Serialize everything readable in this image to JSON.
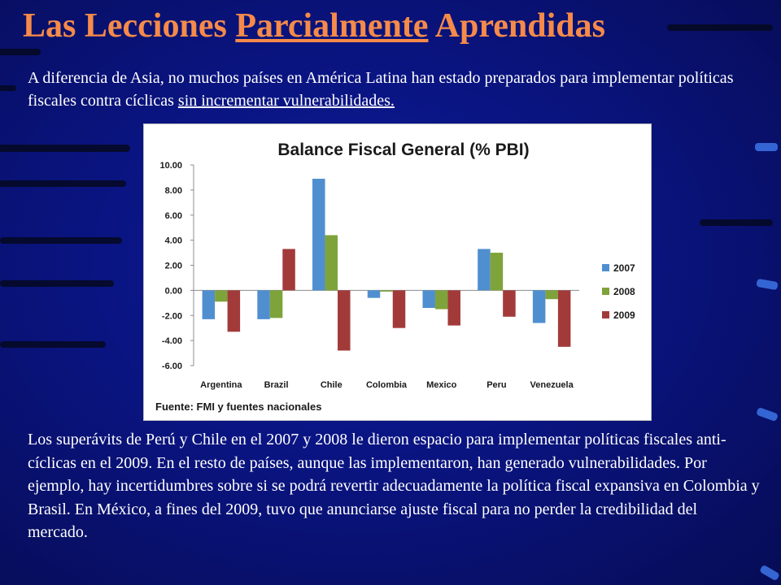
{
  "slide": {
    "title_part1": "Las Lecciones ",
    "title_part2": "Parcialmente",
    "title_part3": " Aprendidas",
    "intro_part1": "A diferencia de Asia, no muchos países en América Latina han estado preparados para implementar políticas fiscales contra cíclicas ",
    "intro_part2": "sin incrementar vulnerabilidades.",
    "body": "Los superávits de Perú y Chile en el 2007 y 2008 le dieron espacio para implementar políticas fiscales anti-cíclicas en el 2009. En el resto de países, aunque las implementaron, han generado vulnerabilidades. Por ejemplo, hay incertidumbres sobre si se podrá revertir adecuadamente la política fiscal expansiva en Colombia y Brasil. En México, a fines del 2009, tuvo que anunciarse ajuste fiscal para no perder la credibilidad del mercado."
  },
  "chart_data": {
    "type": "bar",
    "title": "Balance Fiscal General (% PBI)",
    "source": "Fuente: FMI y fuentes nacionales",
    "categories": [
      "Argentina",
      "Brazil",
      "Chile",
      "Colombia",
      "Mexico",
      "Peru",
      "Venezuela"
    ],
    "series": [
      {
        "name": "2007",
        "color": "#4f8fd0",
        "values": [
          -2.3,
          -2.3,
          8.9,
          -0.6,
          -1.4,
          3.3,
          -2.6
        ]
      },
      {
        "name": "2008",
        "color": "#7ea33a",
        "values": [
          -0.9,
          -2.2,
          4.4,
          -0.1,
          -1.5,
          3.0,
          -0.7
        ]
      },
      {
        "name": "2009",
        "color": "#a33a3a",
        "values": [
          -3.3,
          3.3,
          -4.8,
          -3.0,
          -2.8,
          -2.1,
          -4.5
        ]
      }
    ],
    "ylim": [
      -6,
      10
    ],
    "yticks": [
      -6,
      -4,
      -2,
      0,
      2,
      4,
      6,
      8,
      10
    ],
    "ytick_labels": [
      "-6.00",
      "-4.00",
      "-2.00",
      "0.00",
      "2.00",
      "4.00",
      "6.00",
      "8.00",
      "10.00"
    ],
    "legend_position": "right",
    "grid": false
  }
}
